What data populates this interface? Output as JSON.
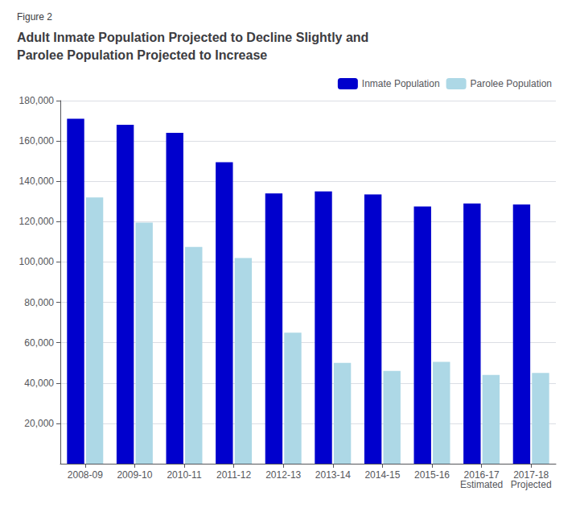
{
  "chart_data": {
    "type": "bar",
    "title": "Adult Inmate Population Projected to Decline Slightly and\nParolee Population Projected to Increase",
    "annotations": [
      "Figure 2"
    ],
    "categories": [
      "2008-09",
      "2009-10",
      "2010-11",
      "2011-12",
      "2012-13",
      "2013-14",
      "2014-15",
      "2015-16",
      "2016-17\nEstimated",
      "2017-18\nProjected"
    ],
    "series": [
      {
        "name": "Inmate Population",
        "color": "#0000CD",
        "values": [
          171000,
          168000,
          164000,
          149500,
          134000,
          135000,
          133500,
          127500,
          129000,
          128500
        ]
      },
      {
        "name": "Parolee Population",
        "color": "#ADD8E6",
        "values": [
          132000,
          119500,
          107500,
          102000,
          65000,
          50000,
          46000,
          50500,
          44000,
          45000
        ]
      }
    ],
    "ylim": [
      0,
      180000
    ],
    "yticks": [
      {
        "value": 20000,
        "label": "20,000"
      },
      {
        "value": 40000,
        "label": "40,000"
      },
      {
        "value": 60000,
        "label": "60,000"
      },
      {
        "value": 80000,
        "label": "80,000"
      },
      {
        "value": 100000,
        "label": "100,000"
      },
      {
        "value": 120000,
        "label": "120,000"
      },
      {
        "value": 140000,
        "label": "140,000"
      },
      {
        "value": 160000,
        "label": "160,000"
      },
      {
        "value": 180000,
        "label": "180,000"
      }
    ],
    "grid": true,
    "legend": "upper right"
  }
}
